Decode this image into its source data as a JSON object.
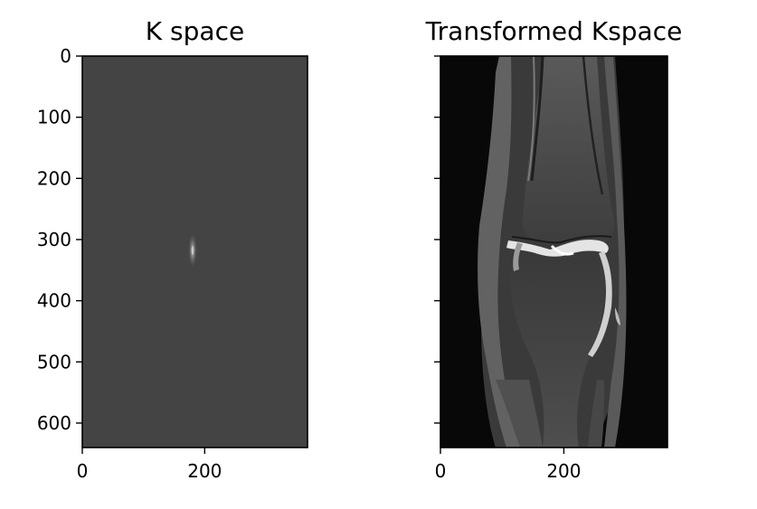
{
  "chart_data": [
    {
      "type": "heatmap",
      "title": "K space",
      "colormap": "gray",
      "image_description_hidden": true,
      "image_shape": [
        640,
        368
      ],
      "xlim": [
        0,
        368
      ],
      "ylim": [
        640,
        0
      ],
      "x_ticks": [
        0,
        200
      ],
      "x_tick_labels": [
        "0",
        "200"
      ],
      "y_ticks": [
        0,
        100,
        200,
        300,
        400,
        500,
        600
      ],
      "y_tick_labels": [
        "0",
        "100",
        "200",
        "300",
        "400",
        "500",
        "600"
      ],
      "background_color": "#444444",
      "peak_location": [
        180,
        320
      ],
      "grid": false
    },
    {
      "type": "heatmap",
      "title": "Transformed Kspace",
      "colormap": "gray",
      "image_shape": [
        640,
        368
      ],
      "xlim": [
        0,
        368
      ],
      "ylim": [
        640,
        0
      ],
      "x_ticks": [
        0,
        200
      ],
      "x_tick_labels": [
        "0",
        "200"
      ],
      "y_ticks": [
        0,
        100,
        200,
        300,
        400,
        500,
        600
      ],
      "y_tick_labels": [
        "",
        "",
        "",
        "",
        "",
        "",
        ""
      ],
      "background_color": "#080808",
      "grid": false
    }
  ]
}
